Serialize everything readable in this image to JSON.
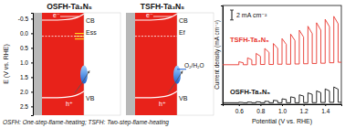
{
  "diagram": {
    "axis": {
      "label": "E (V vs. RHE)",
      "lim": [
        -0.7,
        2.8
      ],
      "ticks": [
        -0.5,
        {
          "value": 0,
          "label": "0.0"
        },
        0.5,
        {
          "value": 1,
          "label": "1.0"
        },
        1.5,
        {
          "value": 2,
          "label": "2.0"
        },
        2.5
      ]
    },
    "panels": [
      {
        "title": "OSFH-Ta₃N₅",
        "cb": -0.45,
        "vb": 2.2,
        "cb_label": "CB",
        "vb_label": "VB",
        "electron_label": "e⁻",
        "hole_label": "h⁺",
        "level": 0.1,
        "level_label": "Ess"
      },
      {
        "title": "TSFH-Ta₃N₅",
        "cb": -0.45,
        "vb": 2.2,
        "cb_label": "CB",
        "vb_label": "VB",
        "electron_label": "e⁻",
        "hole_label": "h⁺",
        "level": 0.1,
        "level_label": "Ef",
        "redox_level": 1.23,
        "redox_label": "O₂/H₂O"
      }
    ],
    "footnote": "OSFH: One-step-flame-heating; TSFH: Two-step-flame-heating"
  },
  "chart_data": {
    "type": "line",
    "x_label": "Potential (V vs. RHE)",
    "y_label": "Current density (mA cm⁻²)",
    "xlim": [
      0.45,
      1.55
    ],
    "ylim": [
      0,
      20
    ],
    "xticks": [
      0.6,
      0.8,
      {
        "value": 1,
        "label": "1.0"
      },
      1.2,
      1.4
    ],
    "tick_labels": "x",
    "scale_bar": {
      "value": 2,
      "label": "2 mA cm⁻²"
    },
    "x": [
      0.45,
      0.6,
      0.6,
      0.64,
      0.64,
      0.68,
      0.68,
      0.72,
      0.72,
      0.76,
      0.76,
      0.8,
      0.8,
      0.84,
      0.84,
      0.88,
      0.88,
      0.92,
      0.92,
      0.96,
      0.96,
      1.0,
      1.0,
      1.04,
      1.04,
      1.08,
      1.08,
      1.12,
      1.12,
      1.16,
      1.16,
      1.2,
      1.2,
      1.24,
      1.24,
      1.28,
      1.28,
      1.32,
      1.32,
      1.36,
      1.36,
      1.4,
      1.4,
      1.44,
      1.44,
      1.48,
      1.48,
      1.52,
      1.52,
      1.55
    ],
    "series": [
      {
        "name": "TSFH-Ta₃N₅",
        "color": "#e8352e",
        "values": [
          8.0,
          8.0,
          8.6,
          8.4,
          8.0,
          8.0,
          9.4,
          9.0,
          8.0,
          8.0,
          10.3,
          9.7,
          8.05,
          8.05,
          11.3,
          10.5,
          8.05,
          8.05,
          12.3,
          11.3,
          8.1,
          8.1,
          13.3,
          12.1,
          8.1,
          8.1,
          14.2,
          12.9,
          8.15,
          8.15,
          15.0,
          13.6,
          8.2,
          8.2,
          15.8,
          14.3,
          8.25,
          8.25,
          16.5,
          15.0,
          8.3,
          8.3,
          17.2,
          15.7,
          8.4,
          8.4,
          17.8,
          16.3,
          8.5,
          8.5
        ]
      },
      {
        "name": "OSFH-Ta₃N₅",
        "color": "#111111",
        "values": [
          0.3,
          0.3,
          0.4,
          0.35,
          0.3,
          0.3,
          0.45,
          0.4,
          0.3,
          0.3,
          0.5,
          0.45,
          0.3,
          0.3,
          0.6,
          0.55,
          0.3,
          0.3,
          0.8,
          0.7,
          0.3,
          0.3,
          1.1,
          0.95,
          0.3,
          0.3,
          1.5,
          1.3,
          0.3,
          0.3,
          1.9,
          1.65,
          0.32,
          0.32,
          2.3,
          2.0,
          0.32,
          0.32,
          2.7,
          2.35,
          0.35,
          0.35,
          3.1,
          2.7,
          0.38,
          0.38,
          3.5,
          3.05,
          0.4,
          0.4
        ]
      }
    ]
  }
}
